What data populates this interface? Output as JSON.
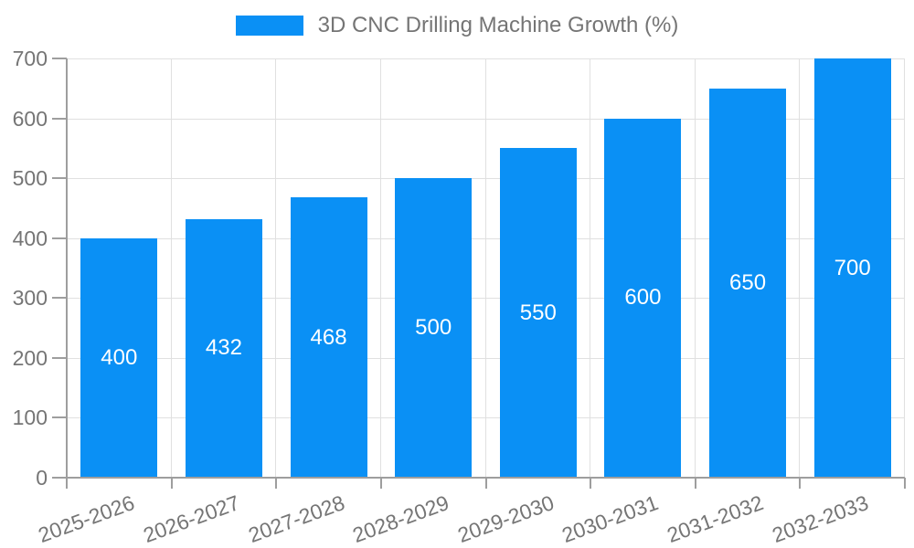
{
  "legend": {
    "label": "3D CNC Drilling Machine Growth (%)"
  },
  "chart_data": {
    "type": "bar",
    "title": "3D CNC Drilling Machine Growth (%)",
    "categories": [
      "2025-2026",
      "2026-2027",
      "2027-2028",
      "2028-2029",
      "2029-2030",
      "2030-2031",
      "2031-2032",
      "2032-2033"
    ],
    "values": [
      400,
      432,
      468,
      500,
      550,
      600,
      650,
      700
    ],
    "value_labels": [
      "400",
      "432",
      "468",
      "500",
      "550",
      "600",
      "650",
      "700"
    ],
    "xlabel": "",
    "ylabel": "",
    "ylim": [
      0,
      700
    ],
    "yticks": [
      0,
      100,
      200,
      300,
      400,
      500,
      600,
      700
    ],
    "ytick_labels": [
      "0",
      "100",
      "200",
      "300",
      "400",
      "500",
      "600",
      "700"
    ],
    "grid": true,
    "legend_position": "top-center",
    "x_label_rotation_deg": -20,
    "colors": {
      "bar": "#0a90f5",
      "grid": "#e0e0e0",
      "axis": "#9e9e9e",
      "text": "#757575",
      "value_label": "#ffffff",
      "background": "#ffffff"
    }
  }
}
